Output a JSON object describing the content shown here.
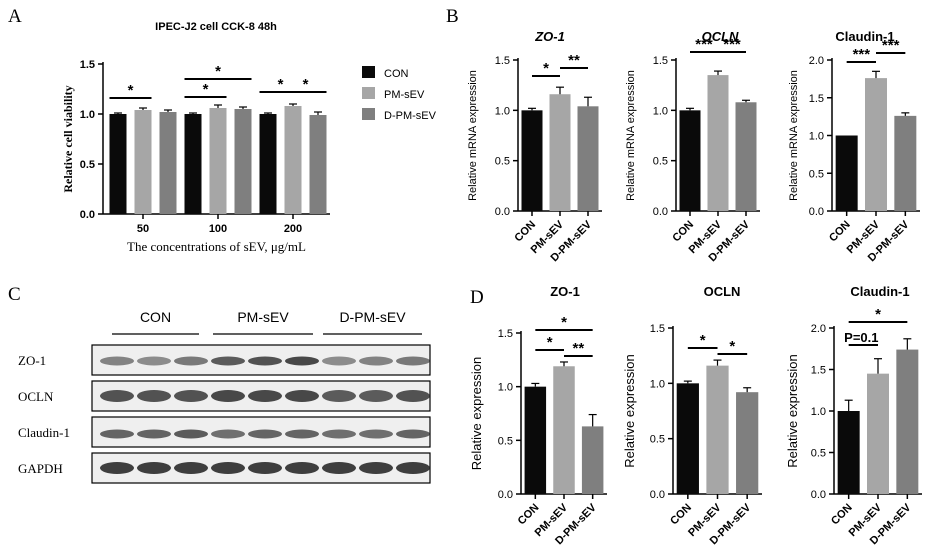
{
  "panels": {
    "a": "A",
    "b": "B",
    "c": "C",
    "d": "D"
  },
  "colors": {
    "con": "#0a0a0a",
    "pm": "#a6a6a6",
    "dpm": "#7f7f7f",
    "blot_band": "#2a2a2a",
    "blot_bg": "#efefef"
  },
  "western_blot": {
    "groups": [
      "CON",
      "PM-sEV",
      "D-PM-sEV"
    ],
    "rows": [
      "ZO-1",
      "OCLN",
      "Claudin-1",
      "GAPDH"
    ]
  },
  "chart_data": [
    {
      "type": "bar",
      "title": "IPEC-J2 cell CCK-8 48h",
      "xlabel": "The concentrations of sEV, μg/mL",
      "ylabel": "Relative cell viability",
      "categories": [
        "50",
        "100",
        "200"
      ],
      "series": [
        {
          "name": "CON",
          "values": [
            1.0,
            1.0,
            1.0
          ]
        },
        {
          "name": "PM-sEV",
          "values": [
            1.04,
            1.06,
            1.08
          ]
        },
        {
          "name": "D-PM-sEV",
          "values": [
            1.02,
            1.05,
            0.99
          ]
        }
      ],
      "errors": [
        [
          0.01,
          0.01,
          0.01
        ],
        [
          0.02,
          0.03,
          0.02
        ],
        [
          0.02,
          0.02,
          0.03
        ]
      ],
      "ylim": [
        0,
        1.5
      ],
      "yticks": [
        "0.0",
        "0.5",
        "1.0",
        "1.5"
      ],
      "legend_position": "right",
      "significance": [
        "*",
        "*",
        "*",
        "*",
        "*"
      ]
    },
    {
      "type": "bar",
      "title": "ZO-1",
      "ylabel": "Relative mRNA expression",
      "categories": [
        "CON",
        "PM-sEV",
        "D-PM-sEV"
      ],
      "values": [
        1.0,
        1.16,
        1.04
      ],
      "errors": [
        0.02,
        0.07,
        0.09
      ],
      "ylim": [
        0,
        1.5
      ],
      "yticks": [
        "0.0",
        "0.5",
        "1.0",
        "1.5"
      ],
      "significance": [
        "*",
        "**"
      ]
    },
    {
      "type": "bar",
      "title": "OCLN",
      "ylabel": "Relative mRNA expression",
      "categories": [
        "CON",
        "PM-sEV",
        "D-PM-sEV"
      ],
      "values": [
        1.0,
        1.35,
        1.08
      ],
      "errors": [
        0.02,
        0.04,
        0.02
      ],
      "ylim": [
        0,
        1.5
      ],
      "yticks": [
        "0.0",
        "0.5",
        "1.0",
        "1.5"
      ],
      "significance": [
        "***",
        "***"
      ]
    },
    {
      "type": "bar",
      "title": "Claudin-1",
      "ylabel": "Relative mRNA expression",
      "categories": [
        "CON",
        "PM-sEV",
        "D-PM-sEV"
      ],
      "values": [
        1.0,
        1.76,
        1.26
      ],
      "errors": [
        0.0,
        0.09,
        0.04
      ],
      "ylim": [
        0,
        2.0
      ],
      "yticks": [
        "0.0",
        "0.5",
        "1.0",
        "1.5",
        "2.0"
      ],
      "significance": [
        "***",
        "***"
      ]
    },
    {
      "type": "bar",
      "title": "ZO-1",
      "ylabel": "Relative expression",
      "categories": [
        "CON",
        "PM-sEV",
        "D-PM-sEV"
      ],
      "values": [
        1.0,
        1.19,
        0.63
      ],
      "errors": [
        0.03,
        0.04,
        0.11
      ],
      "ylim": [
        0,
        1.5
      ],
      "yticks": [
        "0.0",
        "0.5",
        "1.0",
        "1.5"
      ],
      "significance": [
        "*",
        "*",
        "**"
      ]
    },
    {
      "type": "bar",
      "title": "OCLN",
      "ylabel": "Relative expression",
      "categories": [
        "CON",
        "PM-sEV",
        "D-PM-sEV"
      ],
      "values": [
        1.0,
        1.16,
        0.92
      ],
      "errors": [
        0.02,
        0.05,
        0.04
      ],
      "ylim": [
        0,
        1.5
      ],
      "yticks": [
        "0.0",
        "0.5",
        "1.0",
        "1.5"
      ],
      "significance": [
        "*",
        "*"
      ]
    },
    {
      "type": "bar",
      "title": "Claudin-1",
      "ylabel": "Relative expression",
      "categories": [
        "CON",
        "PM-sEV",
        "D-PM-sEV"
      ],
      "values": [
        1.0,
        1.45,
        1.74
      ],
      "errors": [
        0.13,
        0.18,
        0.13
      ],
      "ylim": [
        0,
        2.0
      ],
      "yticks": [
        "0.0",
        "0.5",
        "1.0",
        "1.5",
        "2.0"
      ],
      "significance": [
        "P=0.1",
        "*"
      ]
    }
  ]
}
